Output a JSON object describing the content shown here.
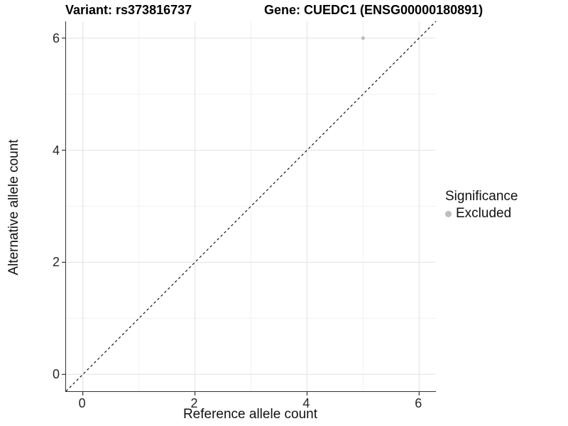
{
  "chart_data": {
    "type": "scatter",
    "title_left": "Variant: rs373816737",
    "title_right": "Gene: CUEDC1 (ENSG00000180891)",
    "xlabel": "Reference allele count",
    "ylabel": "Alternative allele count",
    "xlim": [
      -0.3,
      6.3
    ],
    "ylim": [
      -0.3,
      6.3
    ],
    "x_ticks": [
      0,
      2,
      4,
      6
    ],
    "y_ticks": [
      0,
      2,
      4,
      6
    ],
    "x_minor_gridlines": [
      1,
      3,
      5
    ],
    "y_minor_gridlines": [
      1,
      3,
      5
    ],
    "grid": true,
    "series": [
      {
        "name": "Excluded",
        "color": "#bebebe",
        "points": [
          {
            "x": 5,
            "y": 6
          }
        ]
      }
    ],
    "reference_line": {
      "type": "identity",
      "equation": "y = x",
      "style": "dashed",
      "color": "#000000"
    },
    "legend": {
      "title": "Significance",
      "position": "right",
      "items": [
        {
          "label": "Excluded",
          "color": "#bebebe"
        }
      ]
    },
    "colors": {
      "background": "#ffffff",
      "panel_background": "#ffffff",
      "grid_major": "#e5e5e5",
      "grid_minor": "#f0f0f0",
      "axis_line": "#333333",
      "tick_mark": "#333333",
      "point": "#bebebe"
    }
  }
}
